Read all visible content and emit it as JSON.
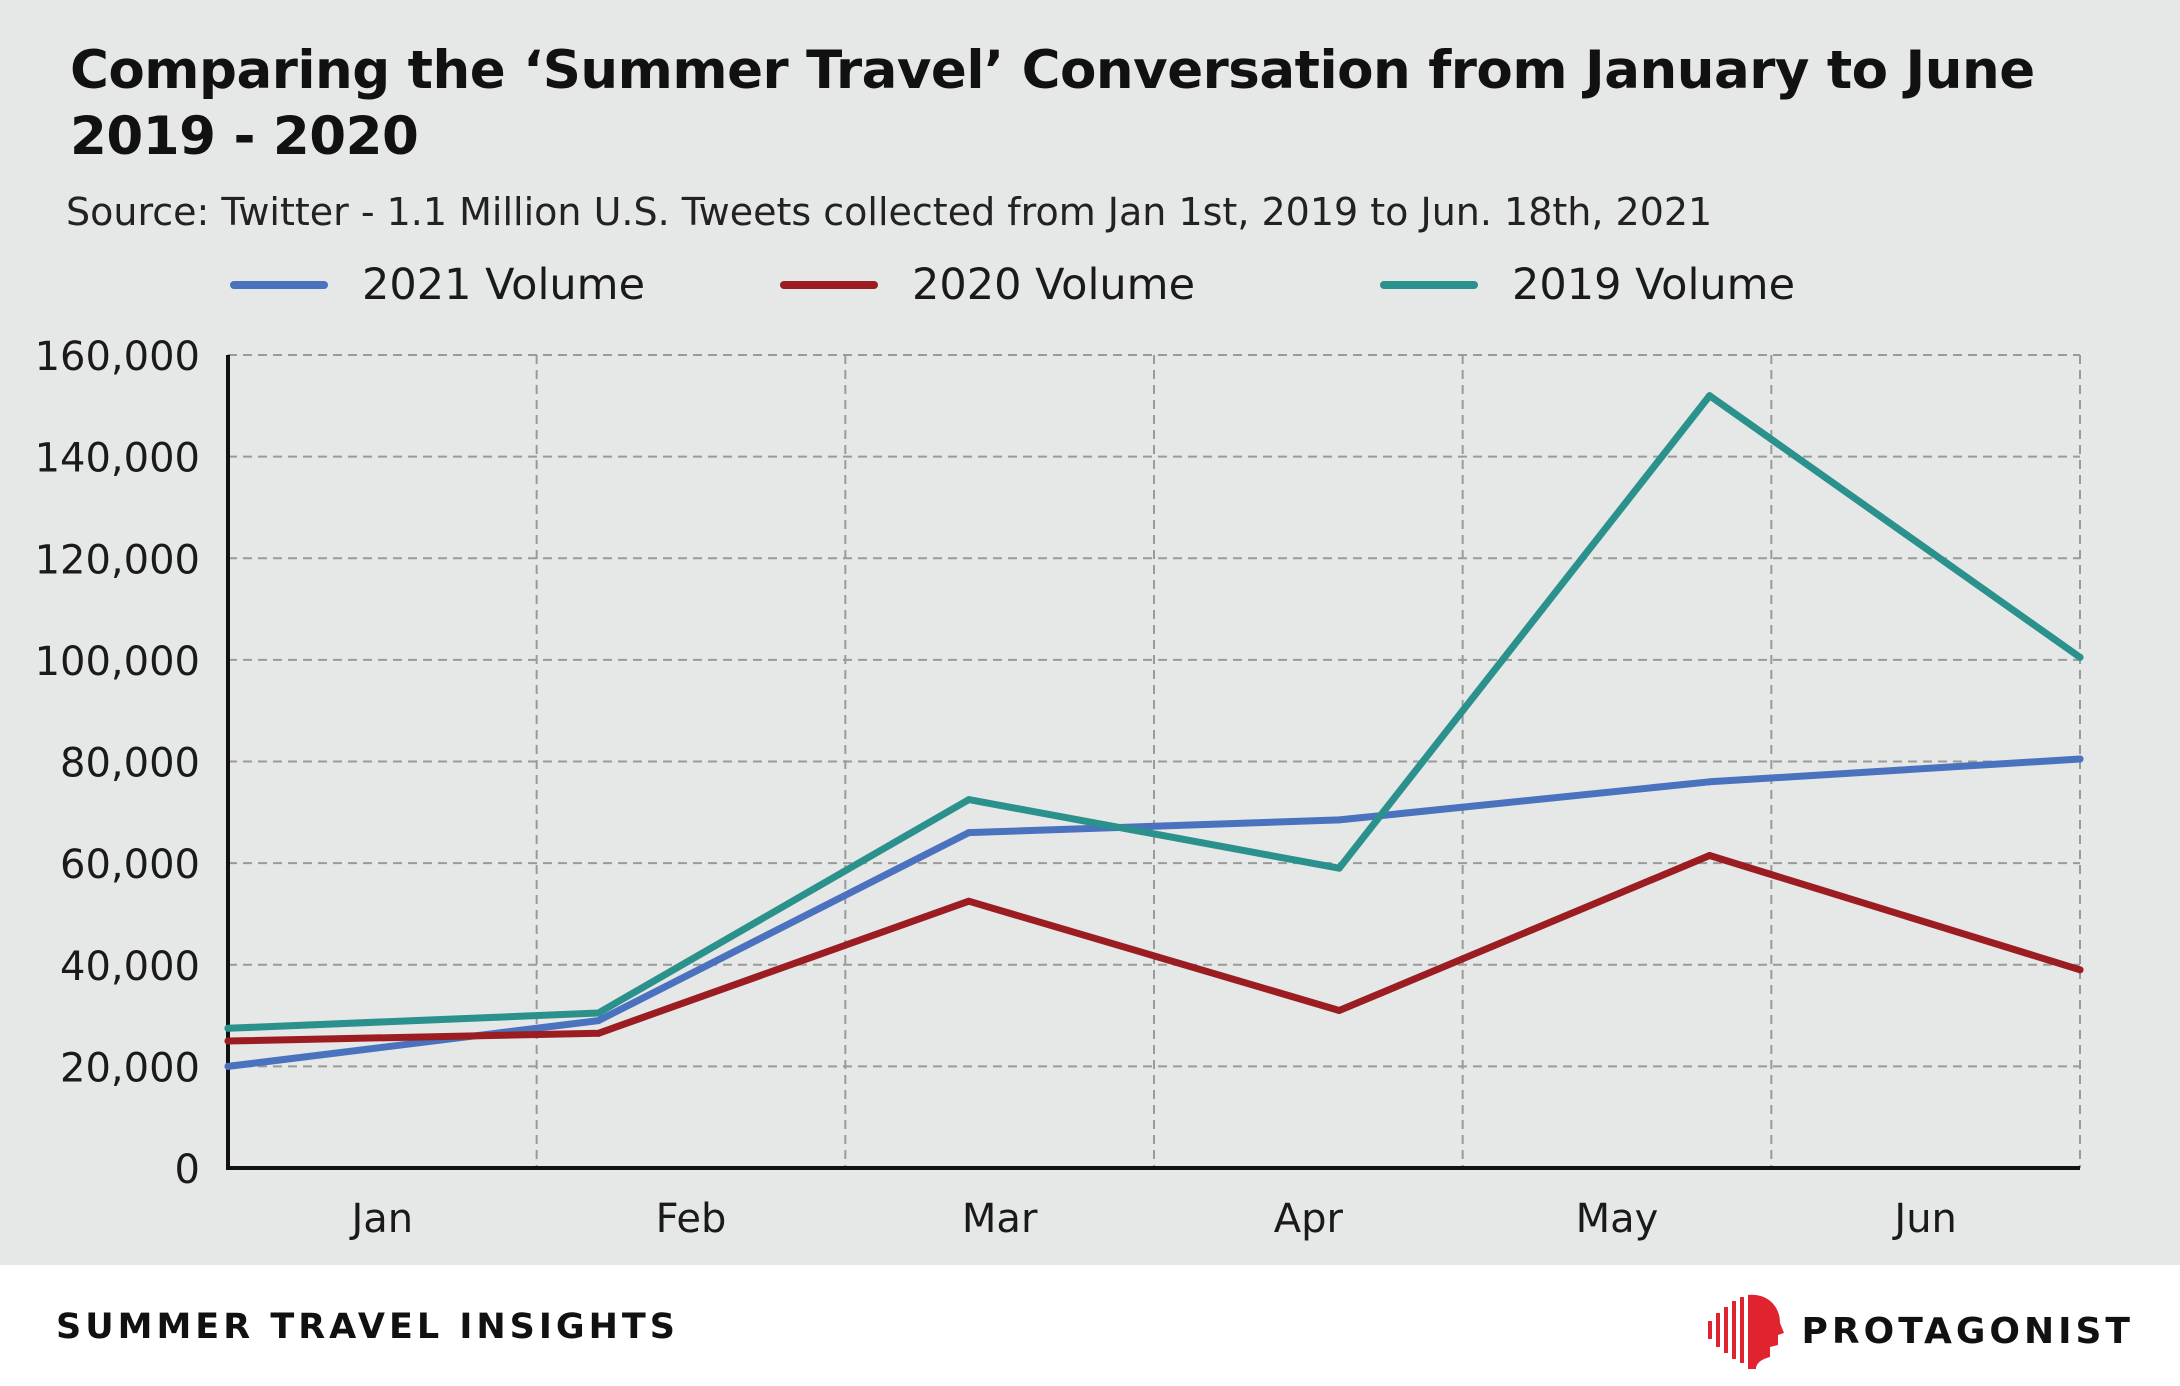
{
  "footer": {
    "title": "SUMMER TRAVEL INSIGHTS",
    "brand_name": "PROTAGONIST",
    "brand_color": "#e0242f"
  },
  "chart_data": {
    "type": "line",
    "title": "Comparing the ‘Summer Travel’ Conversation from January to June 2019 - 2020",
    "subtitle": "Source: Twitter - 1.1 Million U.S. Tweets collected from Jan 1st, 2019 to Jun. 18th, 2021",
    "xlabel": "",
    "ylabel": "",
    "categories": [
      "Jan",
      "Feb",
      "Mar",
      "Apr",
      "May",
      "Jun"
    ],
    "ylim": [
      0,
      160000
    ],
    "yticks": [
      "0",
      "20,000",
      "40,000",
      "60,000",
      "80,000",
      "100,000",
      "120,000",
      "140,000",
      "160,000"
    ],
    "grid": true,
    "legend_position": "top",
    "series": [
      {
        "name": "2021 Volume",
        "color": "#4a72be",
        "values": [
          20000,
          29000,
          66000,
          68500,
          76000,
          80500
        ]
      },
      {
        "name": "2020 Volume",
        "color": "#9b1d21",
        "values": [
          25000,
          26500,
          52500,
          31000,
          61500,
          39000
        ]
      },
      {
        "name": "2019 Volume",
        "color": "#2b918c",
        "values": [
          27500,
          30500,
          72500,
          59000,
          152000,
          100500
        ]
      }
    ]
  }
}
